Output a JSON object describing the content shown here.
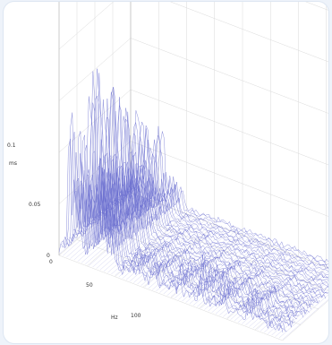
{
  "chart_data": {
    "type": "waterfall-3d",
    "title": "",
    "xlabel": "Hz",
    "zlabel": "ms",
    "x_ticks": [
      0,
      50,
      100
    ],
    "z_ticks": [
      0,
      0.05,
      0.1
    ],
    "x_range": [
      0,
      130
    ],
    "z_range": [
      0,
      0.17
    ],
    "grid": true,
    "line_color": "#6b6fd0",
    "peaks": [
      {
        "hz": 6,
        "amplitude": 0.075
      },
      {
        "hz": 9,
        "amplitude": 0.05
      },
      {
        "hz": 12,
        "amplitude": 0.045
      },
      {
        "hz": 17,
        "amplitude": 0.11
      },
      {
        "hz": 19,
        "amplitude": 0.12
      },
      {
        "hz": 23,
        "amplitude": 0.05
      },
      {
        "hz": 26,
        "amplitude": 0.045
      },
      {
        "hz": 30,
        "amplitude": 0.04
      },
      {
        "hz": 45,
        "amplitude": 0.015
      },
      {
        "hz": 55,
        "amplitude": 0.012
      },
      {
        "hz": 70,
        "amplitude": 0.02
      },
      {
        "hz": 82,
        "amplitude": 0.025
      },
      {
        "hz": 95,
        "amplitude": 0.018
      },
      {
        "hz": 110,
        "amplitude": 0.02
      }
    ]
  }
}
